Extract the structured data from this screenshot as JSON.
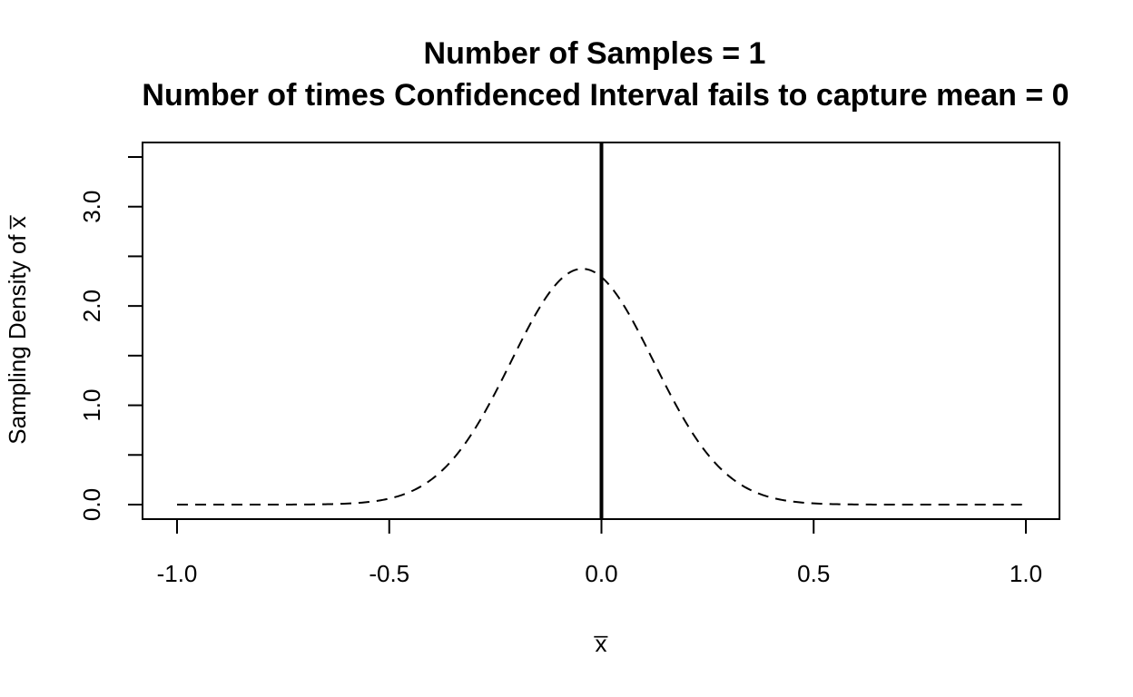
{
  "chart_data": {
    "type": "line",
    "title": "Number of Samples =  1",
    "subtitle": "Number of times Confidenced Interval fails to capture mean =  0",
    "xlabel": "x̅",
    "ylabel": "Sampling Density of x̅",
    "xlim": [
      -1.0,
      1.0
    ],
    "ylim": [
      0.0,
      3.5
    ],
    "x_ticks": [
      -1.0,
      -0.5,
      0.0,
      0.5,
      1.0
    ],
    "x_tick_labels": [
      "-1.0",
      "-0.5",
      "0.0",
      "0.5",
      "1.0"
    ],
    "y_ticks": [
      0.0,
      0.5,
      1.0,
      1.5,
      2.0,
      2.5,
      3.0,
      3.5
    ],
    "y_tick_labels": [
      "0.0",
      "",
      "1.0",
      "",
      "2.0",
      "",
      "3.0",
      ""
    ],
    "grid": false,
    "legend": "none",
    "curve": {
      "style": "dashed",
      "color": "#000000",
      "mean": -0.045,
      "sd": 0.168
    },
    "reference_line": {
      "x": 0.0,
      "style": "solid",
      "color": "#000000"
    }
  }
}
